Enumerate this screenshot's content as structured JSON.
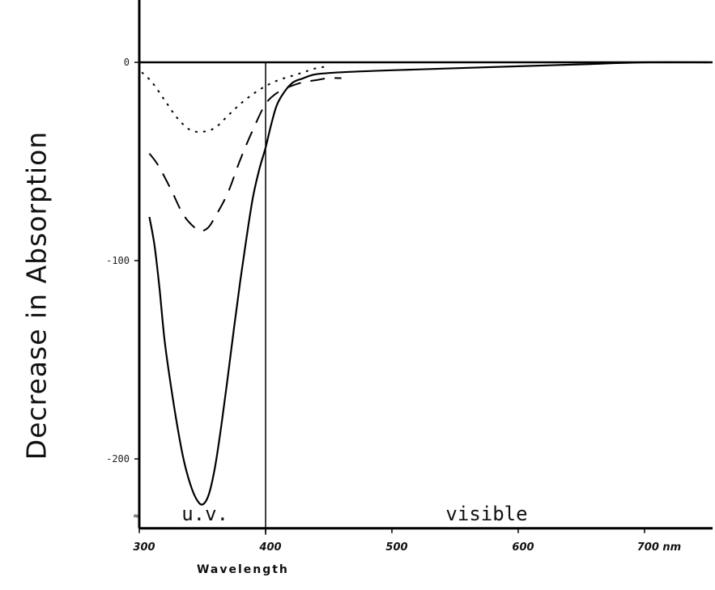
{
  "chart_data": {
    "type": "line",
    "xlabel": "Wavelength",
    "ylabel": "Decrease in Absorption",
    "xlim": [
      300,
      750
    ],
    "ylim": [
      -235,
      30
    ],
    "x_ticks": [
      300,
      400,
      500,
      600,
      700
    ],
    "x_tick_labels": [
      "300",
      "400",
      "500",
      "600",
      "700 nm"
    ],
    "y_ticks": [
      0,
      -100,
      -200
    ],
    "y_tick_labels": [
      "0",
      "-100",
      "-200"
    ],
    "region_labels": [
      {
        "text": "u.v.",
        "x": 352
      },
      {
        "text": "visible",
        "x": 575
      }
    ],
    "vertical_line_x": 400,
    "grid": false,
    "legend": "none",
    "series": [
      {
        "style": "dotted",
        "x": [
          302,
          310,
          320,
          330,
          340,
          350,
          360,
          370,
          380,
          390,
          400,
          410,
          420,
          430,
          440,
          450
        ],
        "y": [
          -5,
          -10,
          -19,
          -28,
          -34,
          -35,
          -33,
          -27,
          -21,
          -16,
          -12,
          -9,
          -7,
          -5,
          -3,
          -2
        ]
      },
      {
        "style": "dashed",
        "x": [
          308,
          315,
          325,
          335,
          345,
          350,
          355,
          360,
          370,
          380,
          390,
          400,
          410,
          420,
          430,
          440,
          450,
          460
        ],
        "y": [
          -46,
          -52,
          -64,
          -77,
          -84,
          -85,
          -83,
          -78,
          -66,
          -49,
          -34,
          -21,
          -15,
          -12,
          -10,
          -9,
          -8,
          -8
        ]
      },
      {
        "style": "solid",
        "x": [
          308,
          312,
          316,
          320,
          325,
          330,
          335,
          340,
          345,
          350,
          355,
          360,
          365,
          370,
          375,
          380,
          385,
          390,
          395,
          400,
          405,
          410,
          420,
          430,
          440,
          460,
          500,
          550,
          600,
          650,
          700,
          750
        ],
        "y": [
          -78,
          -92,
          -114,
          -140,
          -163,
          -183,
          -200,
          -212,
          -220,
          -223,
          -218,
          -204,
          -183,
          -159,
          -134,
          -110,
          -88,
          -68,
          -54,
          -43,
          -30,
          -20,
          -11,
          -8,
          -6,
          -5,
          -4,
          -3,
          -2,
          -1,
          0,
          0
        ]
      }
    ]
  }
}
